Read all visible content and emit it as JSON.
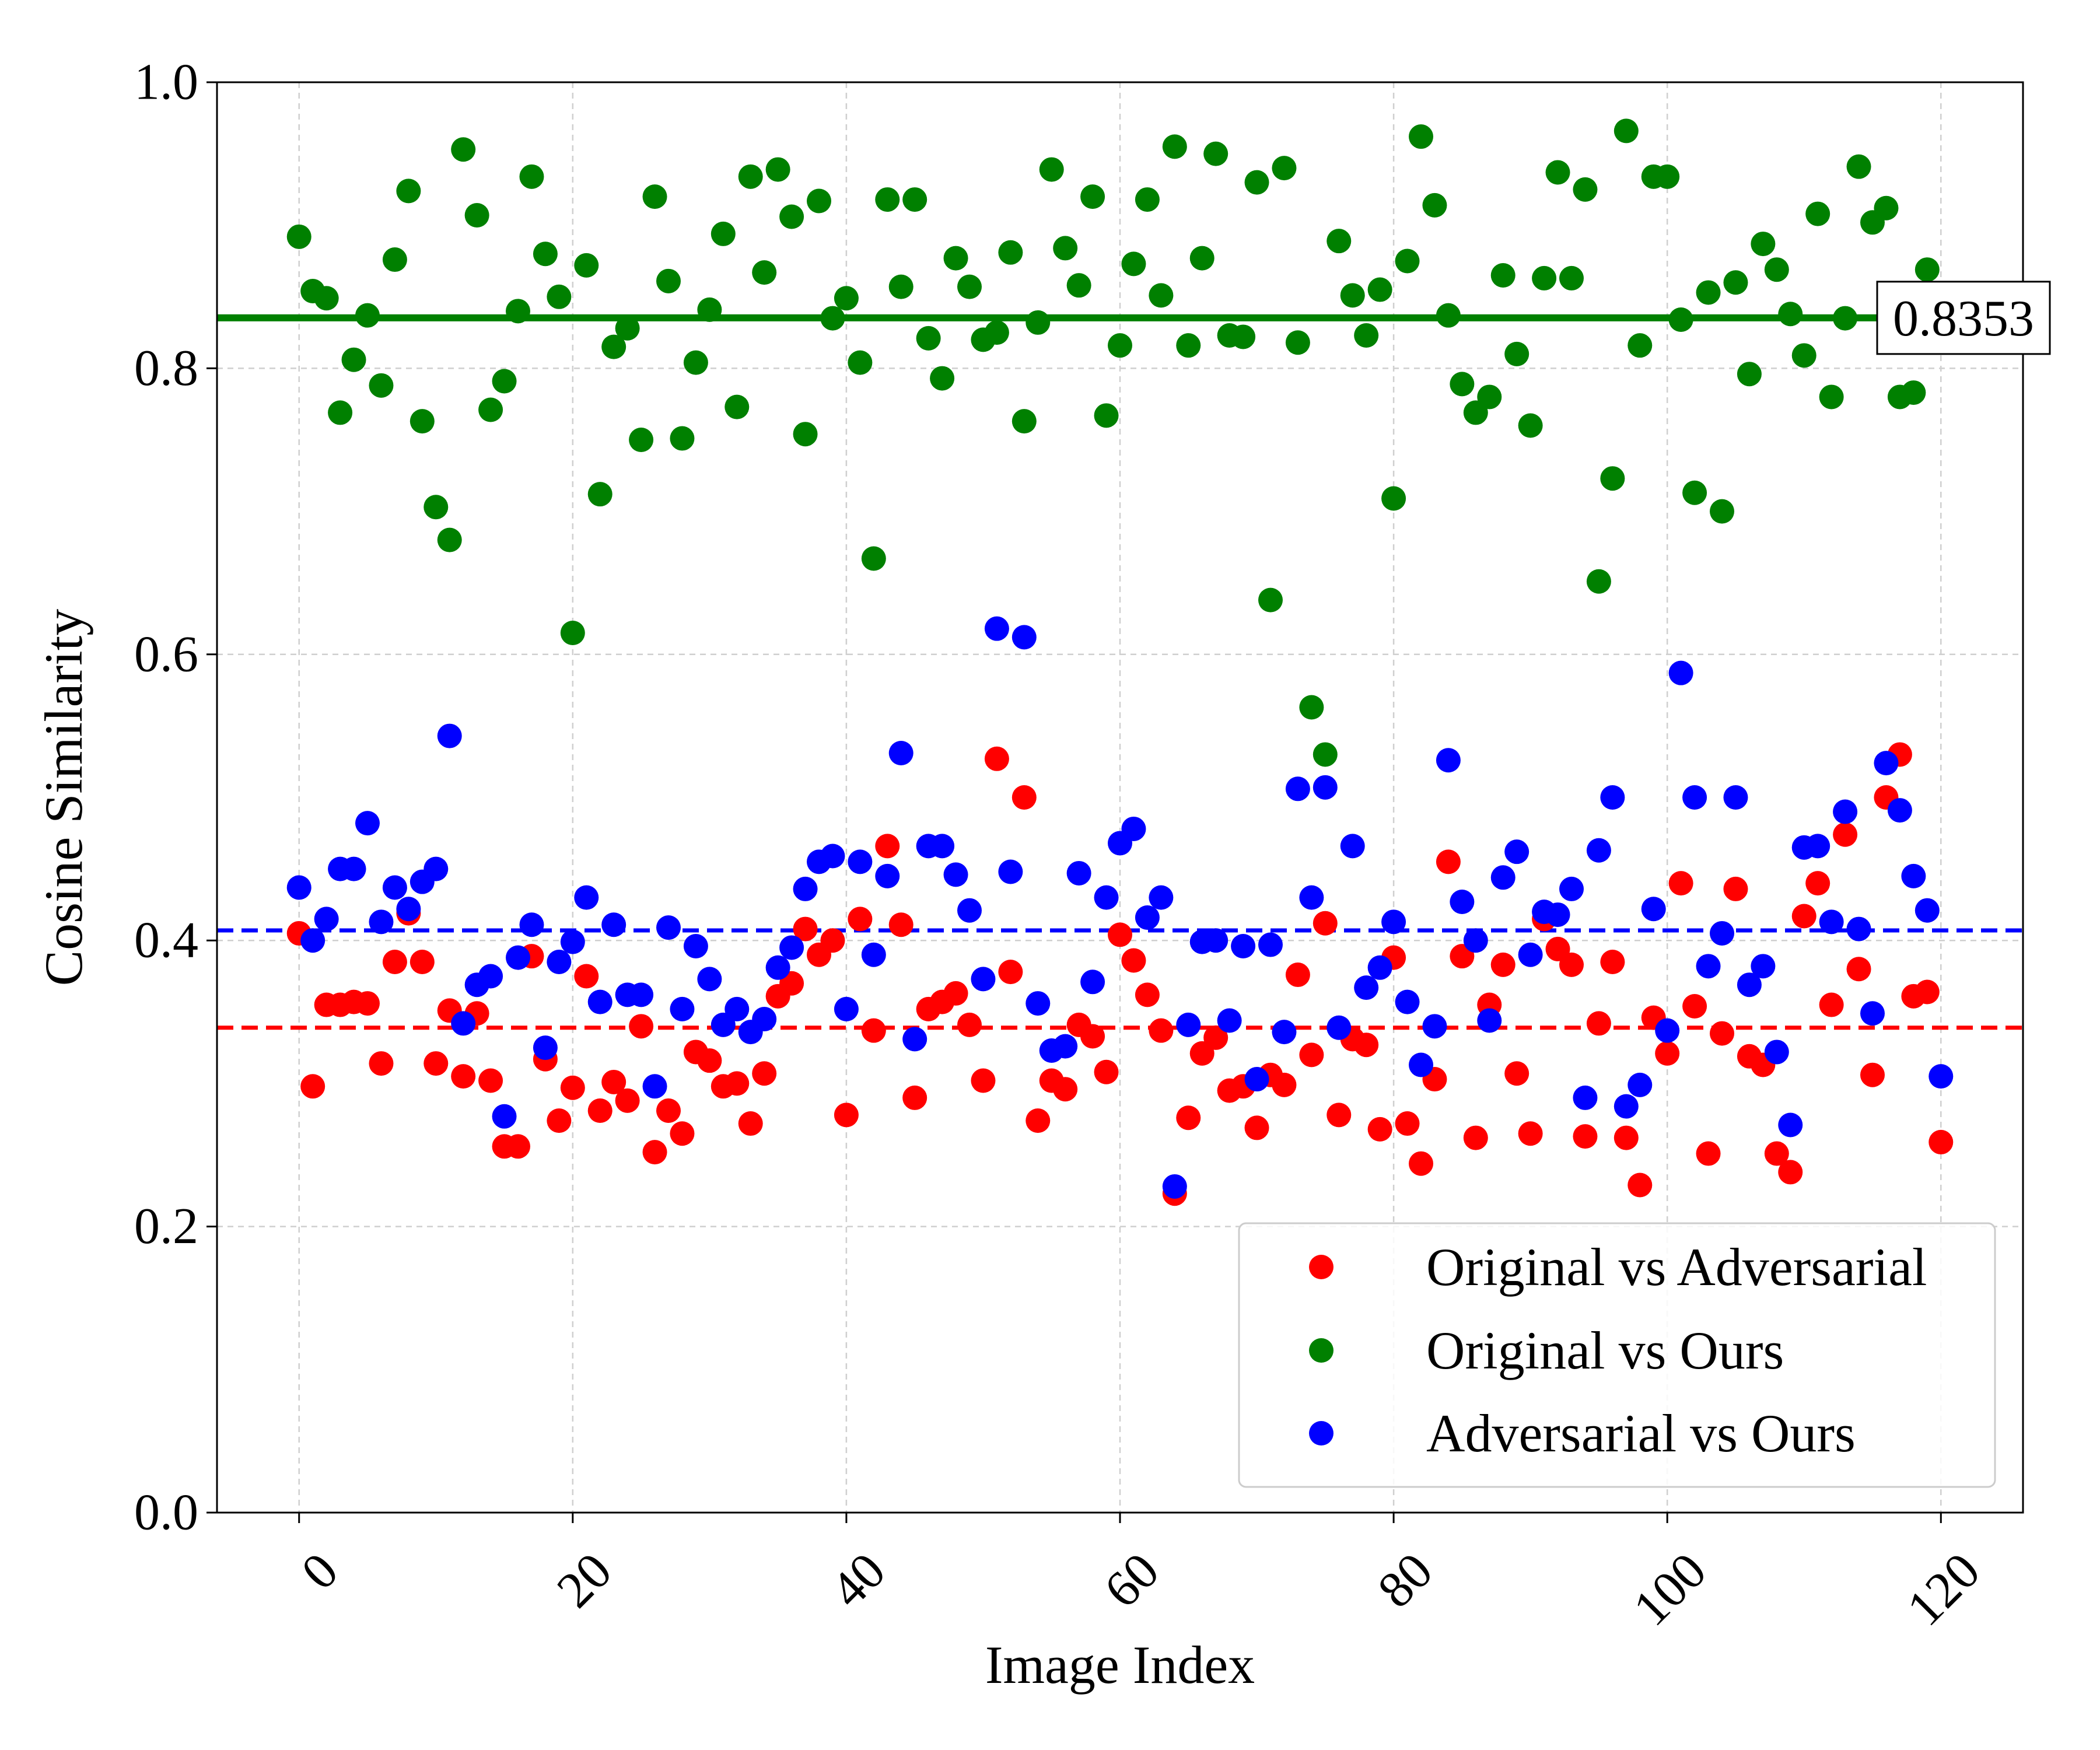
{
  "chart_data": {
    "type": "scatter",
    "title": "",
    "xlabel": "Image Index",
    "ylabel": "Cosine Similarity",
    "xlim": [
      -6,
      126
    ],
    "ylim": [
      0.0,
      1.0
    ],
    "xticks": [
      0,
      20,
      40,
      60,
      80,
      100,
      120
    ],
    "yticks": [
      0.0,
      0.2,
      0.4,
      0.6,
      0.8,
      1.0
    ],
    "xtick_labels": [
      "0",
      "20",
      "40",
      "60",
      "80",
      "100",
      "120"
    ],
    "ytick_labels": [
      "0.0",
      "0.2",
      "0.4",
      "0.6",
      "0.8",
      "1.0"
    ],
    "grid": true,
    "legend_position": "lower-right",
    "series": [
      {
        "name": "Original vs Adversarial",
        "color": "#ff0000",
        "mean": 0.339,
        "values": [
          0.405,
          0.298,
          0.355,
          0.355,
          0.357,
          0.356,
          0.314,
          0.385,
          0.419,
          0.385,
          0.314,
          0.351,
          0.305,
          0.349,
          0.302,
          0.256,
          0.256,
          0.389,
          0.317,
          0.274,
          0.297,
          0.375,
          0.281,
          0.301,
          0.288,
          0.34,
          0.252,
          0.281,
          0.265,
          0.322,
          0.316,
          0.298,
          0.3,
          0.272,
          0.307,
          0.361,
          0.37,
          0.408,
          0.39,
          0.4,
          0.278,
          0.415,
          0.337,
          0.466,
          0.411,
          0.29,
          0.352,
          0.357,
          0.363,
          0.341,
          0.302,
          0.527,
          0.378,
          0.5,
          0.274,
          0.302,
          0.296,
          0.341,
          0.333,
          0.308,
          0.404,
          0.386,
          0.362,
          0.337,
          0.223,
          0.276,
          0.321,
          0.332,
          0.295,
          0.298,
          0.269,
          0.306,
          0.299,
          0.376,
          0.32,
          0.412,
          0.278,
          0.331,
          0.327,
          0.268,
          0.388,
          0.272,
          0.244,
          0.303,
          0.455,
          0.389,
          0.262,
          0.355,
          0.383,
          0.307,
          0.265,
          0.415,
          0.394,
          0.383,
          0.263,
          0.342,
          0.385,
          0.262,
          0.229,
          0.346,
          0.321,
          0.44,
          0.354,
          0.251,
          0.335,
          0.436,
          0.319,
          0.313,
          0.251,
          0.238,
          0.417,
          0.44,
          0.355,
          0.474,
          0.38,
          0.306,
          0.5,
          0.53,
          0.361,
          0.364,
          0.259
        ]
      },
      {
        "name": "Original vs Ours",
        "color": "#008000",
        "mean": 0.8353,
        "mean_label": "0.8353",
        "values": [
          0.892,
          0.854,
          0.849,
          0.769,
          0.806,
          0.837,
          0.788,
          0.876,
          0.924,
          0.763,
          0.703,
          0.68,
          0.953,
          0.907,
          0.771,
          0.791,
          0.84,
          0.934,
          0.88,
          0.85,
          0.615,
          0.872,
          0.712,
          0.815,
          0.828,
          0.75,
          0.92,
          0.861,
          0.751,
          0.804,
          0.841,
          0.894,
          0.773,
          0.934,
          0.867,
          0.939,
          0.906,
          0.754,
          0.917,
          0.835,
          0.849,
          0.804,
          0.667,
          0.918,
          0.857,
          0.918,
          0.821,
          0.793,
          0.877,
          0.857,
          0.82,
          0.825,
          0.881,
          0.763,
          0.832,
          0.939,
          0.884,
          0.858,
          0.92,
          0.767,
          0.816,
          0.873,
          0.918,
          0.851,
          0.955,
          0.816,
          0.877,
          0.95,
          0.823,
          0.822,
          0.93,
          0.638,
          0.94,
          0.818,
          0.563,
          0.53,
          0.889,
          0.851,
          0.823,
          0.855,
          0.709,
          0.875,
          0.962,
          0.914,
          0.837,
          0.789,
          0.769,
          0.78,
          0.865,
          0.81,
          0.76,
          0.863,
          0.937,
          0.863,
          0.925,
          0.651,
          0.723,
          0.966,
          0.816,
          0.934,
          0.934,
          0.834,
          0.713,
          0.853,
          0.7,
          0.86,
          0.796,
          0.887,
          0.869,
          0.838,
          0.809,
          0.908,
          0.78,
          0.835,
          0.941,
          0.902,
          0.912,
          0.78,
          0.783,
          0.869,
          0.852
        ]
      },
      {
        "name": "Adversarial vs Ours",
        "color": "#0000ff",
        "mean": 0.407,
        "values": [
          0.437,
          0.4,
          0.415,
          0.45,
          0.45,
          0.482,
          0.413,
          0.437,
          0.422,
          0.441,
          0.45,
          0.543,
          0.342,
          0.369,
          0.375,
          0.277,
          0.388,
          0.411,
          0.325,
          0.385,
          0.399,
          0.43,
          0.357,
          0.411,
          0.362,
          0.362,
          0.298,
          0.409,
          0.352,
          0.396,
          0.373,
          0.341,
          0.352,
          0.336,
          0.345,
          0.381,
          0.395,
          0.436,
          0.455,
          0.459,
          0.352,
          0.455,
          0.39,
          0.445,
          0.531,
          0.331,
          0.466,
          0.466,
          0.446,
          0.421,
          0.373,
          0.618,
          0.448,
          0.612,
          0.356,
          0.323,
          0.326,
          0.447,
          0.371,
          0.43,
          0.468,
          0.478,
          0.416,
          0.43,
          0.228,
          0.341,
          0.399,
          0.4,
          0.344,
          0.396,
          0.303,
          0.397,
          0.336,
          0.506,
          0.43,
          0.507,
          0.339,
          0.466,
          0.367,
          0.381,
          0.413,
          0.357,
          0.313,
          0.34,
          0.526,
          0.427,
          0.4,
          0.344,
          0.444,
          0.462,
          0.39,
          0.42,
          0.418,
          0.436,
          0.29,
          0.463,
          0.5,
          0.284,
          0.299,
          0.422,
          0.337,
          0.587,
          0.5,
          0.382,
          0.405,
          0.5,
          0.369,
          0.382,
          0.322,
          0.271,
          0.465,
          0.466,
          0.413,
          0.49,
          0.408,
          0.349,
          0.524,
          0.491,
          0.445,
          0.421,
          0.305
        ]
      }
    ]
  }
}
